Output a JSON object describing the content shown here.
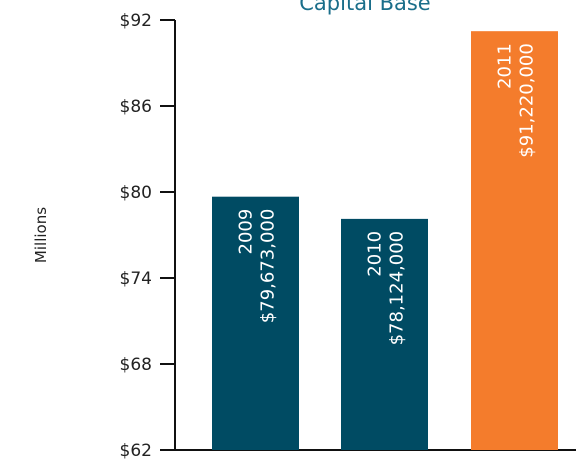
{
  "chart_data": {
    "type": "bar",
    "title": "Capital Base",
    "ylabel": "Millions",
    "categories": [
      "2009",
      "2010",
      "2011"
    ],
    "values": [
      79.673,
      78.124,
      91.22
    ],
    "value_labels": [
      "$79,673,000",
      "$78,124,000",
      "$91,220,000"
    ],
    "colors": [
      "#004b63",
      "#004b63",
      "#f47c2c"
    ],
    "ylim": [
      62,
      92
    ],
    "yticks": [
      {
        "value": 62,
        "label": "$62"
      },
      {
        "value": 68,
        "label": "$68"
      },
      {
        "value": 74,
        "label": "$74"
      },
      {
        "value": 80,
        "label": "$80"
      },
      {
        "value": 86,
        "label": "$86"
      },
      {
        "value": 92,
        "label": "$92"
      }
    ]
  }
}
